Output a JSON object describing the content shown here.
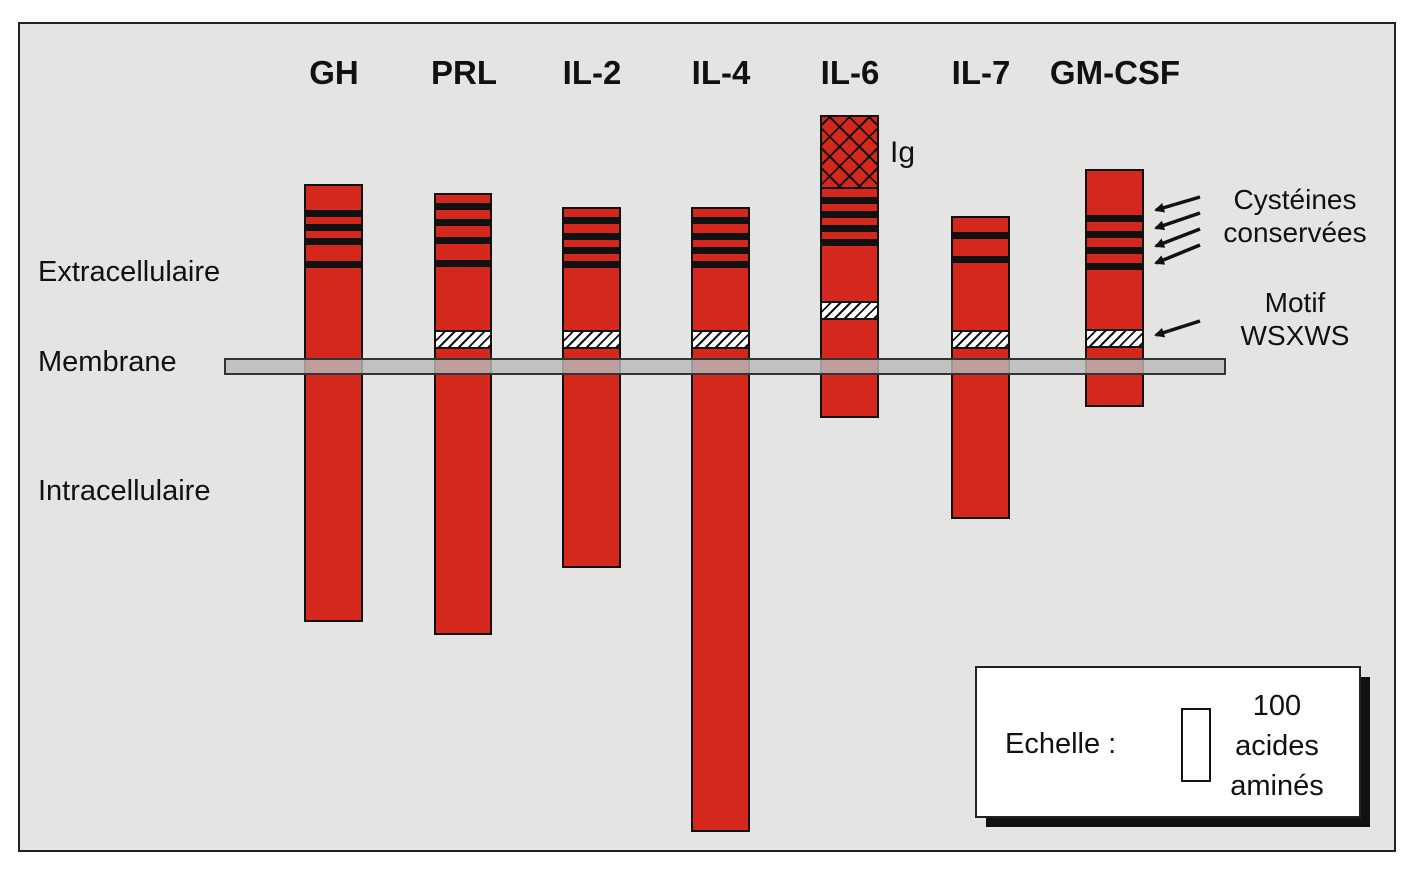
{
  "columns": [
    {
      "key": "gh",
      "label": "GH"
    },
    {
      "key": "prl",
      "label": "PRL"
    },
    {
      "key": "il2",
      "label": "IL-2"
    },
    {
      "key": "il4",
      "label": "IL-4"
    },
    {
      "key": "il6",
      "label": "IL-6"
    },
    {
      "key": "il7",
      "label": "IL-7"
    },
    {
      "key": "gmcsf",
      "label": "GM-CSF"
    }
  ],
  "regions": {
    "extracellular": "Extracellulaire",
    "membrane": "Membrane",
    "intracellular": "Intracellulaire"
  },
  "annotations": {
    "ig": "Ig",
    "cysteines": "Cystéines\nconservées",
    "motif": "Motif\nWSXWS"
  },
  "scale": {
    "label": "Echelle :",
    "text": "100\nacides\naminés"
  },
  "colors": {
    "receptor": "#d3281b",
    "membrane": "#b9b9b9",
    "background": "#e4e4e2"
  }
}
